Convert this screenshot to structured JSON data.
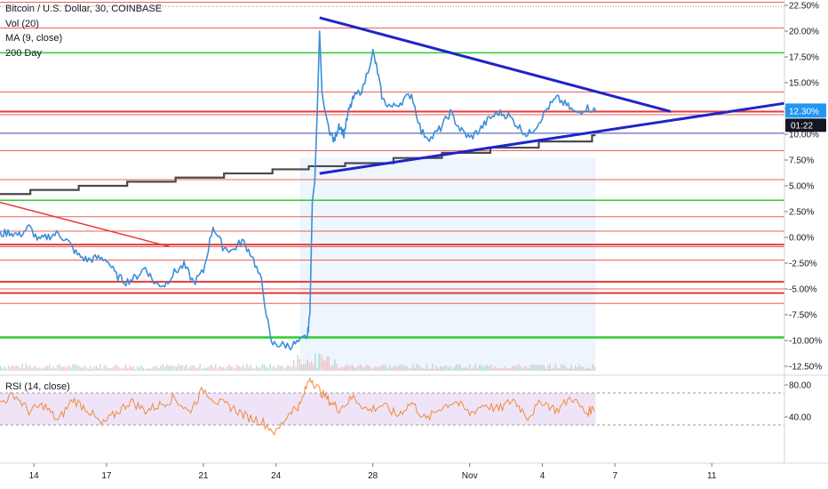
{
  "legend": {
    "symbol_line": "Bitcoin / U.S. Dollar, 30, COINBASE",
    "vol": "Vol (20)",
    "ma": "MA (9, close)",
    "day200": "200 Day"
  },
  "rsi_legend": "RSI (14, close)",
  "colors": {
    "price": "#3a8fd9",
    "rsi": "#f08a3e",
    "trendline": "#1f24c9",
    "hline_red": "#e53935",
    "hline_green": "#2ecc2e",
    "ma200": "#4a4a4a",
    "badge_blue": "#2196f3",
    "badge_dark": "#131722"
  },
  "chart_data": [
    {
      "type": "line",
      "title": "Bitcoin / U.S. Dollar, 30, COINBASE",
      "y_unit": "percent change",
      "y_ticks": [
        "22.50%",
        "20.00%",
        "17.50%",
        "15.00%",
        "12.50%",
        "10.00%",
        "7.50%",
        "5.00%",
        "2.50%",
        "0.00%",
        "-2.50%",
        "-5.00%",
        "-7.50%",
        "-10.00%",
        "-12.50%"
      ],
      "ylim": [
        -13,
        23
      ],
      "x_ticks": [
        "14",
        "17",
        "21",
        "24",
        "28",
        "Nov",
        "4",
        "7",
        "11"
      ],
      "x_tick_days": [
        14,
        17,
        21,
        24,
        28,
        32,
        35,
        38,
        42
      ],
      "xlim": [
        12.6,
        45.0
      ],
      "series": [
        {
          "role": "price",
          "x": [
            12.6,
            13.0,
            13.4,
            13.8,
            14.2,
            14.6,
            15.0,
            15.4,
            15.8,
            16.2,
            16.6,
            17.0,
            17.4,
            17.8,
            18.2,
            18.6,
            19.0,
            19.4,
            19.8,
            20.2,
            20.6,
            21.0,
            21.4,
            21.8,
            22.2,
            22.6,
            23.0,
            23.4,
            23.8,
            24.2,
            24.6,
            25.0,
            25.3,
            25.4,
            25.5,
            25.6,
            25.7,
            25.8,
            25.9,
            26.0,
            26.2,
            26.4,
            26.6,
            26.8,
            27.0,
            27.2,
            27.6,
            28.0,
            28.2,
            28.4,
            28.8,
            29.2,
            29.6,
            30.0,
            30.4,
            30.8,
            31.2,
            31.6,
            32.0,
            32.4,
            32.8,
            33.2,
            33.6,
            34.0,
            34.4,
            34.8,
            35.2,
            35.6,
            36.0,
            36.4,
            36.8,
            37.2
          ],
          "values": [
            0.3,
            0.5,
            0.2,
            1.0,
            -0.3,
            0.1,
            0.4,
            -0.4,
            -1.7,
            -2.2,
            -2.0,
            -2.1,
            -3.7,
            -4.3,
            -3.9,
            -2.9,
            -4.5,
            -4.6,
            -3.4,
            -2.7,
            -4.4,
            -3.3,
            1.1,
            -0.9,
            -1.3,
            -0.3,
            -1.7,
            -4.3,
            -10.3,
            -10.4,
            -10.5,
            -10.1,
            -9.5,
            -7.4,
            3.5,
            5.4,
            12.0,
            20.0,
            14.0,
            12.5,
            10.5,
            9.3,
            11.0,
            10.0,
            12.2,
            13.5,
            14.5,
            18.0,
            16.0,
            13.3,
            12.6,
            13.2,
            13.9,
            10.2,
            9.6,
            10.6,
            12.1,
            10.5,
            9.6,
            10.4,
            11.5,
            12.1,
            11.8,
            10.8,
            9.9,
            11.0,
            12.5,
            13.5,
            12.8,
            12.0,
            12.6,
            12.3
          ]
        },
        {
          "role": "200 Day",
          "x": [
            12.6,
            14.0,
            16.0,
            18.0,
            20.0,
            22.0,
            24.0,
            25.5,
            27.0,
            29.0,
            31.0,
            33.0,
            35.0,
            37.2
          ],
          "values": [
            4.2,
            4.6,
            5.0,
            5.4,
            5.8,
            6.2,
            6.6,
            6.9,
            7.2,
            7.7,
            8.2,
            8.7,
            9.3,
            9.9
          ]
        }
      ],
      "trendlines": [
        {
          "from": [
            25.8,
            21.3
          ],
          "to": [
            40.3,
            12.2
          ]
        },
        {
          "from": [
            25.8,
            6.2
          ],
          "to": [
            45.0,
            13.0
          ]
        },
        {
          "from": [
            12.6,
            3.4
          ],
          "to": [
            19.6,
            -0.9
          ]
        }
      ],
      "hlines_red": [
        22.8,
        20.3,
        14.1,
        12.2,
        11.9,
        8.4,
        5.6,
        3.6,
        2.0,
        0.6,
        -0.7,
        -0.9,
        -2.2,
        -4.3,
        -5.0,
        -5.4,
        -6.4
      ],
      "hlines_green": [
        17.9,
        3.6,
        -9.7
      ],
      "hline_blue": 10.1,
      "hline_dotted": 22.4,
      "last_value_label": "12.30%",
      "countdown_label": "01:22",
      "grid": false
    },
    {
      "type": "line",
      "title": "RSI (14, close)",
      "y_ticks": [
        "80.00",
        "40.00"
      ],
      "band": [
        30,
        70
      ],
      "x": [
        12.6,
        13.2,
        13.8,
        14.4,
        15.0,
        15.6,
        16.2,
        16.8,
        17.4,
        18.0,
        18.6,
        19.2,
        19.8,
        20.4,
        21.0,
        21.6,
        22.2,
        22.8,
        23.4,
        24.0,
        24.6,
        25.0,
        25.4,
        25.8,
        26.2,
        26.6,
        27.2,
        27.8,
        28.4,
        29.0,
        29.6,
        30.2,
        30.8,
        31.4,
        32.0,
        32.6,
        33.2,
        33.8,
        34.4,
        35.0,
        35.6,
        36.2,
        36.8,
        37.2
      ],
      "values": [
        58,
        68,
        47,
        55,
        35,
        62,
        50,
        30,
        45,
        60,
        48,
        55,
        64,
        46,
        75,
        58,
        52,
        40,
        35,
        20,
        48,
        55,
        90,
        73,
        60,
        50,
        65,
        48,
        55,
        42,
        58,
        36,
        52,
        60,
        44,
        56,
        49,
        62,
        40,
        60,
        48,
        65,
        45,
        52
      ]
    }
  ]
}
